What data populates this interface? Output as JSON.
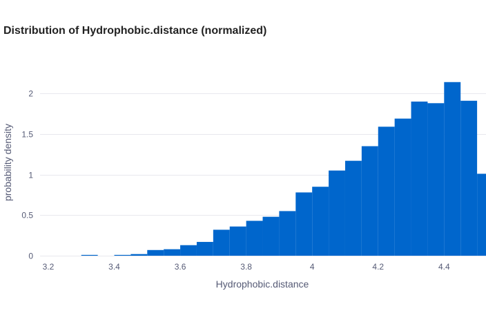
{
  "chart_data": {
    "type": "bar",
    "title": "Distribution of Hydrophobic.distance (normalized)",
    "xlabel": "Hydrophobic.distance",
    "ylabel": "probability density",
    "bin_width": 0.05,
    "bin_starts": [
      3.2,
      3.25,
      3.3,
      3.35,
      3.4,
      3.45,
      3.5,
      3.55,
      3.6,
      3.65,
      3.7,
      3.75,
      3.8,
      3.85,
      3.9,
      3.95,
      4.0,
      4.05,
      4.1,
      4.15,
      4.2,
      4.25,
      4.3,
      4.35,
      4.4,
      4.45,
      4.5
    ],
    "values": [
      0,
      0,
      0.01,
      0,
      0.01,
      0.02,
      0.07,
      0.08,
      0.13,
      0.17,
      0.32,
      0.36,
      0.43,
      0.48,
      0.55,
      0.78,
      0.85,
      1.05,
      1.17,
      1.35,
      1.59,
      1.69,
      1.9,
      1.88,
      2.14,
      1.91,
      1.01
    ],
    "xlim": [
      3.175,
      4.527
    ],
    "ylim": [
      0,
      2.3
    ],
    "x_ticks": [
      "3.2",
      "3.4",
      "3.6",
      "3.8",
      "4",
      "4.2",
      "4.4"
    ],
    "x_tick_values": [
      3.2,
      3.4,
      3.6,
      3.8,
      4.0,
      4.2,
      4.4
    ],
    "y_ticks": [
      "0",
      "0.5",
      "1",
      "1.5",
      "2"
    ],
    "y_tick_values": [
      0,
      0.5,
      1,
      1.5,
      2
    ],
    "grid": true,
    "bar_color": "#0066cc",
    "grid_color": "#e8e8ee",
    "text_color": "#555a75"
  }
}
